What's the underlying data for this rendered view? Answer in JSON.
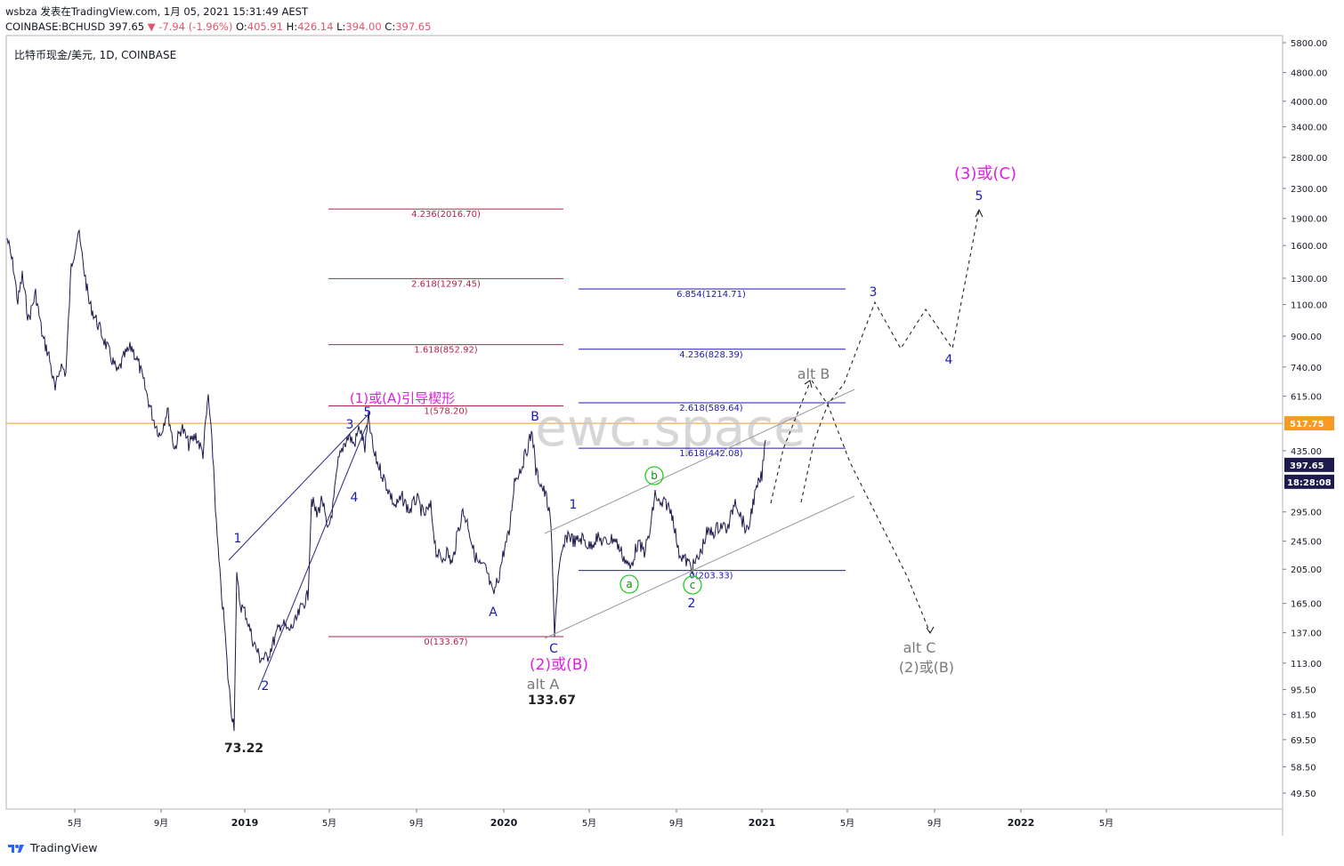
{
  "header": {
    "line1": "wsbza 发表在TradingView.com, 1月 05, 2021 15:31:49 AEST",
    "symbol": "COINBASE:BCHUSD",
    "last": "397.65",
    "change": "▼ -7.94 (-1.96%)",
    "o_label": "O:",
    "o": "405.91",
    "h_label": "H:",
    "h": "426.14",
    "l_label": "L:",
    "l": "394.00",
    "c_label": "C:",
    "c": "397.65"
  },
  "footer": {
    "brand": "TradingView"
  },
  "watermark": "ewc.space",
  "chart_data": {
    "type": "line",
    "title": "比特币现金/美元, 1D, COINBASE",
    "x_ticks": [
      "5月",
      "9月",
      "2019",
      "5月",
      "9月",
      "2020",
      "5月",
      "9月",
      "2021",
      "5月",
      "9月",
      "2022",
      "5月"
    ],
    "y_ticks": [
      "5800.00",
      "4800.00",
      "4000.00",
      "3400.00",
      "2800.00",
      "2300.00",
      "1900.00",
      "1600.00",
      "1300.00",
      "1100.00",
      "900.00",
      "740.00",
      "615.00",
      "517.75",
      "435.00",
      "397.65",
      "295.00",
      "245.00",
      "205.00",
      "165.00",
      "137.00",
      "113.00",
      "95.50",
      "81.50",
      "69.50",
      "58.50",
      "49.50"
    ],
    "last_price": "397.65",
    "countdown": "18:28:08",
    "highlight_level": "517.75",
    "colors": {
      "price": "#1d1a4d",
      "fib_left": "#b0234a",
      "fib_right": "#1d1aa8",
      "wave": "#1a1ab8",
      "magenta": "#e020e0",
      "gray": "#7a7a7a",
      "orange": "#f59a23",
      "green": "#22cc22"
    },
    "fib_left": [
      {
        "label": "4.236(2016.70)",
        "value": 2016.7
      },
      {
        "label": "2.618(1297.45)",
        "value": 1297.45
      },
      {
        "label": "1.618(852.92)",
        "value": 852.92
      },
      {
        "label": "1(578.20)",
        "value": 578.2
      },
      {
        "label": "0(133.67)",
        "value": 133.67
      }
    ],
    "fib_right": [
      {
        "label": "6.854(1214.71)",
        "value": 1214.71
      },
      {
        "label": "4.236(828.39)",
        "value": 828.39
      },
      {
        "label": "2.618(589.64)",
        "value": 589.64
      },
      {
        "label": "1.618(442.08)",
        "value": 442.08
      },
      {
        "label": "0(203.33)",
        "value": 203.33
      }
    ],
    "wave_labels": [
      {
        "text": "1",
        "color": "wave"
      },
      {
        "text": "2",
        "color": "wave"
      },
      {
        "text": "3",
        "color": "wave"
      },
      {
        "text": "4",
        "color": "wave"
      },
      {
        "text": "5",
        "color": "wave"
      },
      {
        "text": "A",
        "color": "wave"
      },
      {
        "text": "B",
        "color": "wave"
      },
      {
        "text": "C",
        "color": "wave"
      },
      {
        "text": "1",
        "color": "wave"
      },
      {
        "text": "2",
        "color": "wave"
      },
      {
        "text": "3",
        "color": "wave"
      },
      {
        "text": "4",
        "color": "wave"
      },
      {
        "text": "5",
        "color": "wave"
      },
      {
        "text": "a",
        "color": "green"
      },
      {
        "text": "b",
        "color": "green"
      },
      {
        "text": "c",
        "color": "green"
      }
    ],
    "annotations": [
      {
        "text": "(1)或(A)引导楔形",
        "color": "magenta"
      },
      {
        "text": "(2)或(B)",
        "color": "magenta"
      },
      {
        "text": "(3)或(C)",
        "color": "magenta"
      },
      {
        "text": "alt A",
        "color": "gray"
      },
      {
        "text": "alt B",
        "color": "gray"
      },
      {
        "text": "alt C",
        "color": "gray"
      },
      {
        "text": "(2)或(B)",
        "color": "gray"
      }
    ],
    "price_labels": [
      "73.22",
      "133.67"
    ]
  }
}
